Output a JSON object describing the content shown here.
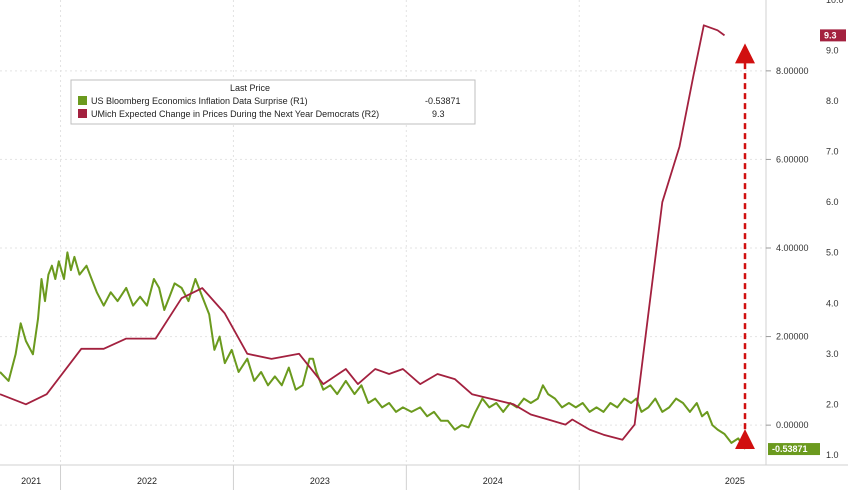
{
  "chart_data": {
    "type": "line",
    "x_labels": [
      "2021",
      "2022",
      "2023",
      "2024",
      "2025"
    ],
    "legend": {
      "title": "Last Price",
      "placement": "top-left",
      "entries": [
        {
          "name": "US Bloomberg Economics Inflation Data Surprise  (R1)",
          "last": "-0.53871",
          "color": "#6b9a1e"
        },
        {
          "name": "UMich Expected Change in Prices During the Next Year Democrats  (R2)",
          "last": "9.3",
          "color": "#a3213f"
        }
      ]
    },
    "axes": {
      "r1": {
        "ticks": [
          "4.00000",
          "2.00000",
          "0.00000",
          "8.00000",
          "6.00000"
        ],
        "ylim": [
          -0.9,
          9.6
        ]
      },
      "r2": {
        "ticks": [
          "10.0",
          "9.0",
          "8.0",
          "7.0",
          "6.0",
          "5.0",
          "4.0",
          "3.0",
          "2.0",
          "1.0"
        ],
        "ylim": [
          0.8,
          10.0
        ]
      }
    },
    "series": [
      {
        "name": "US Bloomberg Economics Inflation Data Surprise  (R1)",
        "axis": "r1",
        "color": "#6b9a1e",
        "last_label": "-0.53871",
        "points": [
          [
            2020.65,
            1.2
          ],
          [
            2020.7,
            1.0
          ],
          [
            2020.74,
            1.6
          ],
          [
            2020.77,
            2.3
          ],
          [
            2020.8,
            1.9
          ],
          [
            2020.84,
            1.6
          ],
          [
            2020.87,
            2.4
          ],
          [
            2020.89,
            3.3
          ],
          [
            2020.91,
            2.8
          ],
          [
            2020.93,
            3.4
          ],
          [
            2020.95,
            3.6
          ],
          [
            2020.97,
            3.3
          ],
          [
            2020.99,
            3.7
          ],
          [
            2021.02,
            3.3
          ],
          [
            2021.04,
            3.9
          ],
          [
            2021.06,
            3.5
          ],
          [
            2021.08,
            3.8
          ],
          [
            2021.11,
            3.4
          ],
          [
            2021.15,
            3.6
          ],
          [
            2021.18,
            3.3
          ],
          [
            2021.21,
            3.0
          ],
          [
            2021.25,
            2.7
          ],
          [
            2021.29,
            3.0
          ],
          [
            2021.33,
            2.8
          ],
          [
            2021.38,
            3.1
          ],
          [
            2021.42,
            2.7
          ],
          [
            2021.46,
            2.9
          ],
          [
            2021.5,
            2.7
          ],
          [
            2021.54,
            3.3
          ],
          [
            2021.57,
            3.1
          ],
          [
            2021.6,
            2.6
          ],
          [
            2021.63,
            2.9
          ],
          [
            2021.66,
            3.2
          ],
          [
            2021.7,
            3.1
          ],
          [
            2021.74,
            2.8
          ],
          [
            2021.78,
            3.3
          ],
          [
            2021.82,
            2.9
          ],
          [
            2021.86,
            2.5
          ],
          [
            2021.89,
            1.7
          ],
          [
            2021.92,
            2.0
          ],
          [
            2021.95,
            1.4
          ],
          [
            2021.99,
            1.7
          ],
          [
            2022.03,
            1.2
          ],
          [
            2022.08,
            1.5
          ],
          [
            2022.12,
            1.0
          ],
          [
            2022.16,
            1.2
          ],
          [
            2022.2,
            0.9
          ],
          [
            2022.24,
            1.1
          ],
          [
            2022.28,
            0.9
          ],
          [
            2022.32,
            1.3
          ],
          [
            2022.36,
            0.8
          ],
          [
            2022.4,
            0.9
          ],
          [
            2022.44,
            1.5
          ],
          [
            2022.46,
            1.5
          ],
          [
            2022.48,
            1.2
          ],
          [
            2022.52,
            0.8
          ],
          [
            2022.56,
            0.9
          ],
          [
            2022.6,
            0.7
          ],
          [
            2022.65,
            1.0
          ],
          [
            2022.7,
            0.7
          ],
          [
            2022.74,
            0.9
          ],
          [
            2022.78,
            0.5
          ],
          [
            2022.82,
            0.6
          ],
          [
            2022.86,
            0.4
          ],
          [
            2022.9,
            0.5
          ],
          [
            2022.94,
            0.3
          ],
          [
            2022.98,
            0.4
          ],
          [
            2023.03,
            0.3
          ],
          [
            2023.08,
            0.4
          ],
          [
            2023.12,
            0.2
          ],
          [
            2023.16,
            0.3
          ],
          [
            2023.2,
            0.1
          ],
          [
            2023.24,
            0.1
          ],
          [
            2023.28,
            -0.1
          ],
          [
            2023.32,
            0.0
          ],
          [
            2023.36,
            -0.05
          ],
          [
            2023.4,
            0.3
          ],
          [
            2023.44,
            0.6
          ],
          [
            2023.48,
            0.4
          ],
          [
            2023.52,
            0.5
          ],
          [
            2023.56,
            0.3
          ],
          [
            2023.6,
            0.5
          ],
          [
            2023.64,
            0.4
          ],
          [
            2023.68,
            0.6
          ],
          [
            2023.72,
            0.5
          ],
          [
            2023.76,
            0.6
          ],
          [
            2023.79,
            0.9
          ],
          [
            2023.82,
            0.7
          ],
          [
            2023.86,
            0.6
          ],
          [
            2023.9,
            0.4
          ],
          [
            2023.94,
            0.5
          ],
          [
            2023.98,
            0.4
          ],
          [
            2024.02,
            0.5
          ],
          [
            2024.06,
            0.3
          ],
          [
            2024.1,
            0.4
          ],
          [
            2024.14,
            0.3
          ],
          [
            2024.18,
            0.5
          ],
          [
            2024.22,
            0.4
          ],
          [
            2024.26,
            0.6
          ],
          [
            2024.3,
            0.5
          ],
          [
            2024.33,
            0.6
          ],
          [
            2024.36,
            0.3
          ],
          [
            2024.4,
            0.4
          ],
          [
            2024.44,
            0.6
          ],
          [
            2024.48,
            0.3
          ],
          [
            2024.52,
            0.4
          ],
          [
            2024.56,
            0.6
          ],
          [
            2024.6,
            0.5
          ],
          [
            2024.64,
            0.3
          ],
          [
            2024.68,
            0.5
          ],
          [
            2024.71,
            0.2
          ],
          [
            2024.74,
            0.3
          ],
          [
            2024.77,
            0.0
          ],
          [
            2024.8,
            -0.1
          ],
          [
            2024.84,
            -0.2
          ],
          [
            2024.88,
            -0.4
          ],
          [
            2024.92,
            -0.3
          ],
          [
            2024.96,
            -0.54
          ]
        ]
      },
      {
        "name": "UMich Expected Change in Prices During the Next Year Democrats  (R2)",
        "axis": "r2",
        "color": "#a3213f",
        "last_label": "9.3",
        "points": [
          [
            2020.65,
            2.2
          ],
          [
            2020.8,
            2.0
          ],
          [
            2020.92,
            2.2
          ],
          [
            2021.12,
            3.1
          ],
          [
            2021.25,
            3.1
          ],
          [
            2021.38,
            3.3
          ],
          [
            2021.55,
            3.3
          ],
          [
            2021.7,
            4.1
          ],
          [
            2021.82,
            4.3
          ],
          [
            2021.95,
            3.8
          ],
          [
            2022.08,
            3.0
          ],
          [
            2022.22,
            2.9
          ],
          [
            2022.38,
            3.0
          ],
          [
            2022.52,
            2.4
          ],
          [
            2022.65,
            2.7
          ],
          [
            2022.72,
            2.4
          ],
          [
            2022.82,
            2.7
          ],
          [
            2022.9,
            2.6
          ],
          [
            2022.98,
            2.7
          ],
          [
            2023.08,
            2.4
          ],
          [
            2023.18,
            2.6
          ],
          [
            2023.28,
            2.5
          ],
          [
            2023.38,
            2.2
          ],
          [
            2023.5,
            2.1
          ],
          [
            2023.62,
            2.0
          ],
          [
            2023.72,
            1.8
          ],
          [
            2023.82,
            1.7
          ],
          [
            2023.92,
            1.6
          ],
          [
            2023.96,
            1.7
          ],
          [
            2024.06,
            1.5
          ],
          [
            2024.14,
            1.4
          ],
          [
            2024.25,
            1.3
          ],
          [
            2024.32,
            1.6
          ],
          [
            2024.4,
            3.8
          ],
          [
            2024.48,
            6.0
          ],
          [
            2024.58,
            7.1
          ],
          [
            2024.66,
            8.5
          ],
          [
            2024.72,
            9.5
          ],
          [
            2024.8,
            9.4
          ],
          [
            2024.84,
            9.3
          ]
        ]
      }
    ],
    "annotation": "red dashed double arrow spanning the recent divergence between the two series"
  }
}
